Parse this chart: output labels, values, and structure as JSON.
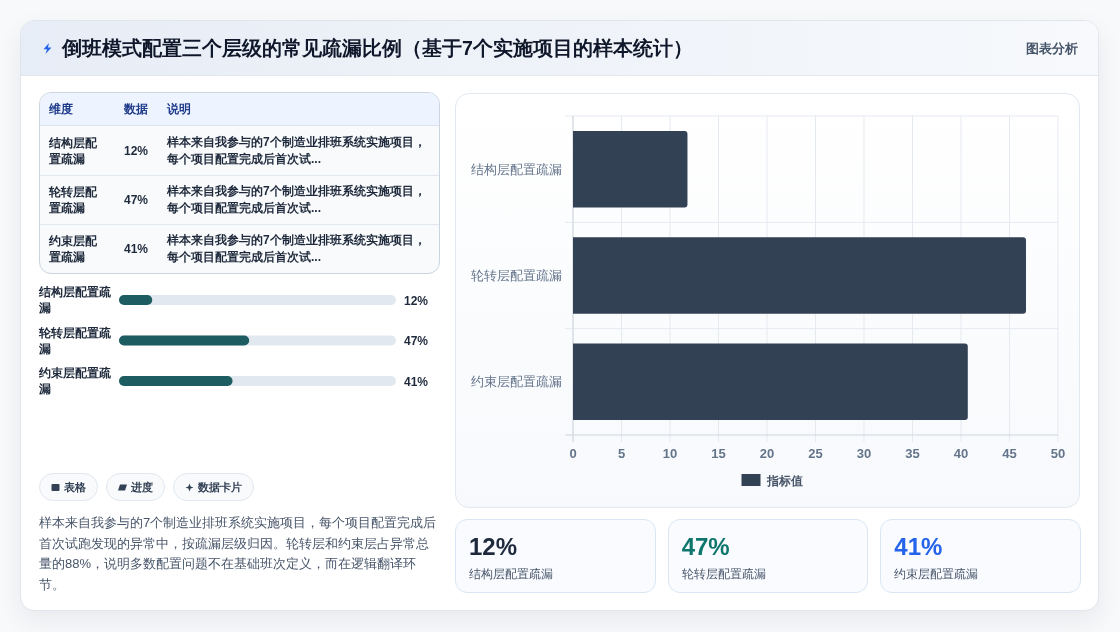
{
  "chart_data": [
    {
      "type": "other",
      "title": "倒班模式配置三个层级的常见疏漏比例（基于7个实施项目的样本统计）",
      "annotations": [
        "图表分析"
      ]
    },
    {
      "type": "other",
      "annotations": [
        "维度",
        "数据",
        "说明",
        "结构层配置疏漏",
        "12%",
        "样本来自我参与的7个制造业排班系统实施项目，每个项目配置完成后首次试...",
        "轮转层配置疏漏",
        "47%",
        "样本来自我参与的7个制造业排班系统实施项目，每个项目配置完成后首次试...",
        "约束层配置疏漏",
        "41%",
        "样本来自我参与的7个制造业排班系统实施项目，每个项目配置完成后首次试..."
      ]
    },
    {
      "type": "bar",
      "orientation": "horizontal",
      "categories": [
        "结构层配置疏漏",
        "轮转层配置疏漏",
        "约束层配置疏漏"
      ],
      "values": [
        12,
        47,
        41
      ],
      "value_labels": [
        "12%",
        "47%",
        "41%"
      ],
      "color": "#1d5d61",
      "xlim": [
        0,
        100
      ]
    },
    {
      "type": "other",
      "annotations": [
        "表格",
        "进度",
        "数据卡片",
        "样本来自我参与的7个制造业排班系统实施项目，每个项目配置完成后首次试跑发现的异常中，按疏漏层级归因。轮转层和约束层占异常总量的88%，说明多数配置问题不在基础班次定义，而在逻辑翻译环节。"
      ]
    },
    {
      "type": "bar",
      "orientation": "horizontal",
      "categories": [
        "结构层配置疏漏",
        "轮转层配置疏漏",
        "约束层配置疏漏"
      ],
      "series": [
        {
          "name": "指标值",
          "color": "#334155",
          "values": [
            11.8,
            46.7,
            40.7
          ]
        }
      ],
      "xlim": [
        0,
        50
      ],
      "xticks": [
        0,
        5,
        10,
        15,
        20,
        25,
        30,
        35,
        40,
        45,
        50
      ],
      "grid": true,
      "legend": "bottom"
    },
    {
      "type": "other",
      "annotations": [
        "12%",
        "结构层配置疏漏",
        "47%",
        "轮转层配置疏漏",
        "41%",
        "约束层配置疏漏"
      ]
    }
  ]
}
